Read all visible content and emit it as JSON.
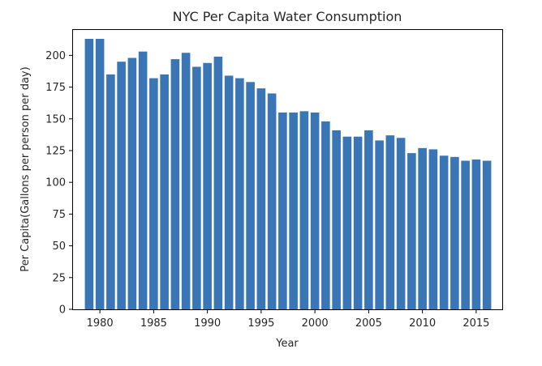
{
  "chart_data": {
    "type": "bar",
    "title": "NYC Per Capita Water Consumption",
    "xlabel": "Year",
    "ylabel": "Per Capita(Gallons per person per day)",
    "xlim": [
      1977.5,
      2017.5
    ],
    "ylim": [
      0,
      220
    ],
    "xticks": [
      1980,
      1985,
      1990,
      1995,
      2000,
      2005,
      2010,
      2015
    ],
    "yticks": [
      0,
      25,
      50,
      75,
      100,
      125,
      150,
      175,
      200
    ],
    "grid": false,
    "legend": "none",
    "bar_color": "#3a76b5",
    "categories": [
      1979,
      1980,
      1981,
      1982,
      1983,
      1984,
      1985,
      1986,
      1987,
      1988,
      1989,
      1990,
      1991,
      1992,
      1993,
      1994,
      1995,
      1996,
      1997,
      1998,
      1999,
      2000,
      2001,
      2002,
      2003,
      2004,
      2005,
      2006,
      2007,
      2008,
      2009,
      2010,
      2011,
      2012,
      2013,
      2014,
      2015,
      2016
    ],
    "values": [
      213,
      213,
      185,
      195,
      198,
      203,
      182,
      185,
      197,
      202,
      191,
      194,
      199,
      184,
      182,
      179,
      174,
      170,
      155,
      155,
      156,
      155,
      148,
      141,
      136,
      136,
      141,
      133,
      137,
      135,
      123,
      127,
      126,
      121,
      120,
      117,
      118,
      117
    ]
  }
}
